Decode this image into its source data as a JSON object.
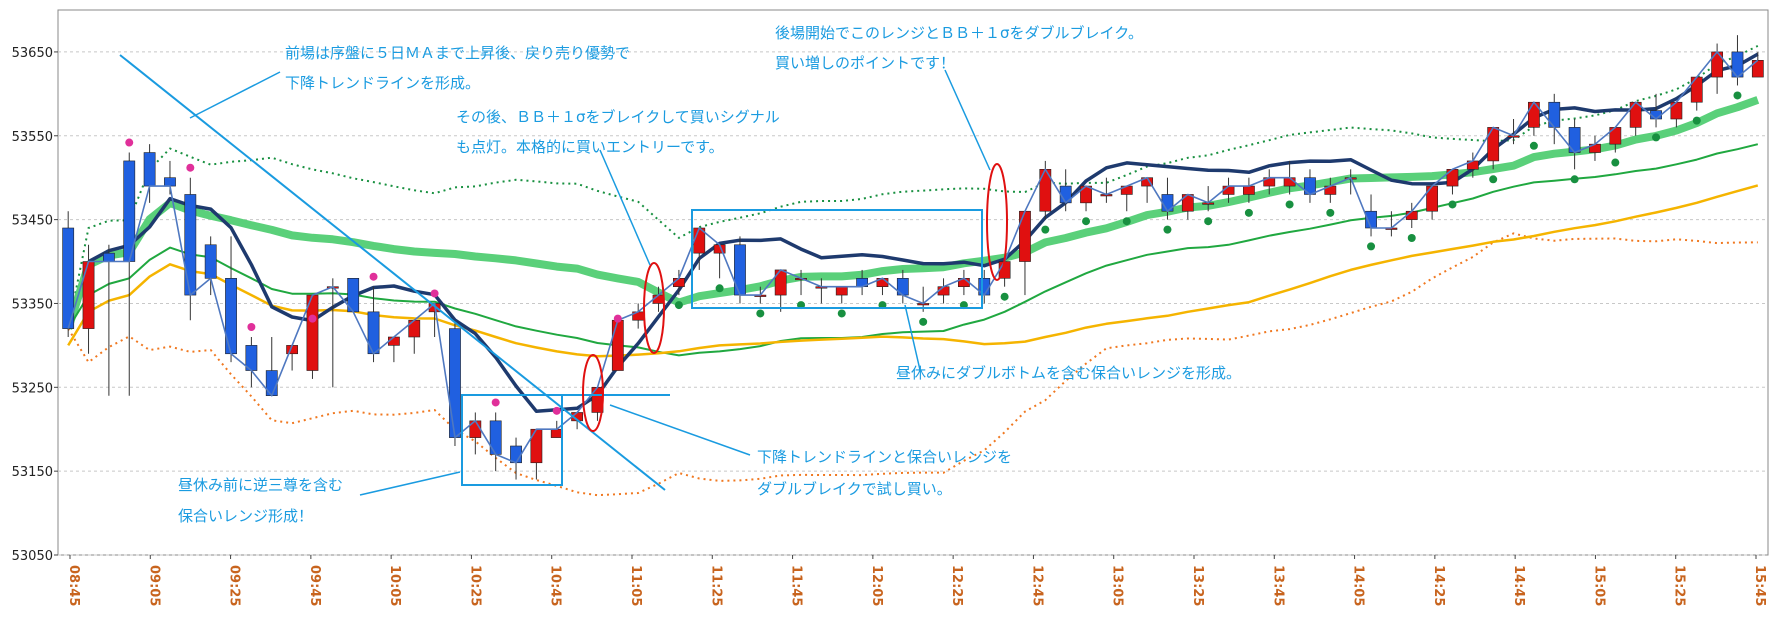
{
  "chart_data": {
    "type": "candlestick",
    "y_ticks": [
      53650,
      53550,
      53450,
      53350,
      53250,
      53150,
      53050
    ],
    "ylim": [
      53050,
      53700
    ],
    "x_ticks": [
      "08:45",
      "09:05",
      "09:25",
      "09:45",
      "10:05",
      "10:25",
      "10:45",
      "11:05",
      "11:25",
      "11:45",
      "12:05",
      "12:25",
      "12:45",
      "13:05",
      "13:25",
      "13:45",
      "14:05",
      "14:25",
      "14:45",
      "15:05",
      "15:25",
      "15:45"
    ],
    "colors": {
      "up": "#e01010",
      "down": "#2060e0",
      "ma5": "#1e3a6e",
      "ma_slow": "#f5b400",
      "bb_mid": "#20a840",
      "bb_band": "#5ad07a",
      "close_line": "#4f78c0",
      "annotation": "#1a9be0",
      "signal_pink": "#e0309a",
      "signal_green": "#189040",
      "lower_band": "#f07820"
    },
    "candles": [
      [
        53440,
        53460,
        53320,
        53310
      ],
      [
        53320,
        53420,
        53400,
        53290
      ],
      [
        53410,
        53420,
        53400,
        53240
      ],
      [
        53520,
        53530,
        53400,
        53240
      ],
      [
        53530,
        53540,
        53490,
        53470
      ],
      [
        53500,
        53520,
        53490,
        53480
      ],
      [
        53480,
        53500,
        53360,
        53330
      ],
      [
        53420,
        53430,
        53380,
        53360
      ],
      [
        53380,
        53430,
        53290,
        53280
      ],
      [
        53300,
        53310,
        53270,
        53250
      ],
      [
        53270,
        53310,
        53240,
        53240
      ],
      [
        53290,
        53300,
        53300,
        53270
      ],
      [
        53270,
        53320,
        53360,
        53260
      ],
      [
        53370,
        53380,
        53370,
        53250
      ],
      [
        53380,
        53380,
        53340,
        53340
      ],
      [
        53340,
        53370,
        53290,
        53280
      ],
      [
        53300,
        53310,
        53310,
        53280
      ],
      [
        53310,
        53320,
        53330,
        53290
      ],
      [
        53340,
        53350,
        53350,
        53310
      ],
      [
        53320,
        53330,
        53190,
        53180
      ],
      [
        53190,
        53220,
        53210,
        53170
      ],
      [
        53210,
        53220,
        53170,
        53150
      ],
      [
        53180,
        53190,
        53160,
        53140
      ],
      [
        53160,
        53170,
        53200,
        53140
      ],
      [
        53190,
        53210,
        53200,
        53190
      ],
      [
        53210,
        53220,
        53220,
        53200
      ],
      [
        53220,
        53250,
        53250,
        53210
      ],
      [
        53270,
        53320,
        53330,
        53270
      ],
      [
        53330,
        53350,
        53340,
        53320
      ],
      [
        53350,
        53370,
        53360,
        53340
      ],
      [
        53370,
        53390,
        53380,
        53360
      ],
      [
        53410,
        53440,
        53440,
        53390
      ],
      [
        53410,
        53420,
        53420,
        53380
      ],
      [
        53420,
        53430,
        53360,
        53350
      ],
      [
        53360,
        53370,
        53360,
        53350
      ],
      [
        53360,
        53380,
        53390,
        53340
      ],
      [
        53380,
        53390,
        53380,
        53360
      ],
      [
        53370,
        53380,
        53370,
        53350
      ],
      [
        53360,
        53370,
        53370,
        53350
      ],
      [
        53380,
        53390,
        53370,
        53360
      ],
      [
        53370,
        53380,
        53380,
        53360
      ],
      [
        53380,
        53390,
        53360,
        53350
      ],
      [
        53350,
        53370,
        53350,
        53340
      ],
      [
        53360,
        53380,
        53370,
        53350
      ],
      [
        53370,
        53390,
        53380,
        53360
      ],
      [
        53380,
        53390,
        53360,
        53350
      ],
      [
        53380,
        53390,
        53400,
        53370
      ],
      [
        53400,
        53460,
        53460,
        53360
      ],
      [
        53460,
        53520,
        53510,
        53450
      ],
      [
        53490,
        53510,
        53470,
        53460
      ],
      [
        53470,
        53490,
        53490,
        53460
      ],
      [
        53480,
        53500,
        53480,
        53470
      ],
      [
        53480,
        53490,
        53490,
        53460
      ],
      [
        53490,
        53500,
        53500,
        53470
      ],
      [
        53480,
        53500,
        53460,
        53450
      ],
      [
        53460,
        53480,
        53480,
        53450
      ],
      [
        53470,
        53490,
        53470,
        53460
      ],
      [
        53480,
        53500,
        53490,
        53470
      ],
      [
        53480,
        53500,
        53490,
        53470
      ],
      [
        53490,
        53510,
        53500,
        53480
      ],
      [
        53490,
        53520,
        53500,
        53480
      ],
      [
        53500,
        53510,
        53480,
        53470
      ],
      [
        53480,
        53500,
        53490,
        53470
      ],
      [
        53500,
        53510,
        53500,
        53480
      ],
      [
        53460,
        53480,
        53440,
        53430
      ],
      [
        53440,
        53460,
        53440,
        53430
      ],
      [
        53450,
        53470,
        53460,
        53440
      ],
      [
        53460,
        53480,
        53490,
        53450
      ],
      [
        53490,
        53510,
        53510,
        53480
      ],
      [
        53510,
        53530,
        53520,
        53500
      ],
      [
        53520,
        53560,
        53560,
        53510
      ],
      [
        53550,
        53570,
        53550,
        53540
      ],
      [
        53560,
        53580,
        53590,
        53550
      ],
      [
        53590,
        53600,
        53560,
        53540
      ],
      [
        53560,
        53570,
        53530,
        53510
      ],
      [
        53530,
        53550,
        53540,
        53520
      ],
      [
        53540,
        53560,
        53560,
        53530
      ],
      [
        53560,
        53580,
        53590,
        53550
      ],
      [
        53580,
        53600,
        53570,
        53560
      ],
      [
        53570,
        53590,
        53590,
        53560
      ],
      [
        53590,
        53620,
        53620,
        53580
      ],
      [
        53620,
        53660,
        53650,
        53600
      ],
      [
        53650,
        53670,
        53620,
        53610
      ],
      [
        53620,
        53650,
        53640,
        53620
      ]
    ],
    "annotations": [
      "前場は序盤に５日ＭＡまで上昇後、戻り売り優勢で",
      "下降トレンドラインを形成。",
      "その後、ＢＢ＋１σをブレイクして買いシグナル",
      "も点灯。本格的に買いエントリーです。",
      "後場開始でこのレンジとＢＢ＋１σをダブルブレイク。",
      "買い増しのポイントです！",
      "昼休みにダブルボトムを含む保合いレンジを形成。",
      "下降トレンドラインと保合いレンジを",
      "ダブルブレイクで試し買い。",
      "昼休み前に逆三尊を含む",
      "保合いレンジ形成！"
    ]
  }
}
